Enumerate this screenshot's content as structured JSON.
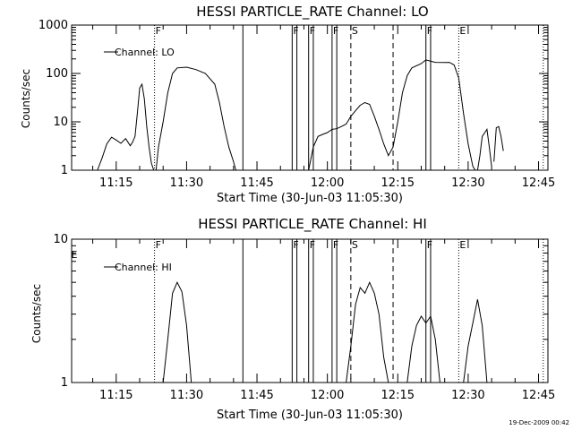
{
  "footer_stamp": "19-Dec-2009 00:42",
  "chart_data": [
    {
      "type": "line",
      "title": "HESSI PARTICLE_RATE Channel: LO",
      "xlabel": "Start Time (30-Jun-03 11:05:30)",
      "ylabel": "Counts/sec",
      "y_scale": "log",
      "ylim": [
        1,
        1000
      ],
      "y_ticks": [
        "1",
        "10",
        "100",
        "1000"
      ],
      "x_range": [
        "11:05:30",
        "12:47"
      ],
      "x_ticks": [
        "11:15",
        "11:30",
        "11:45",
        "12:00",
        "12:15",
        "12:30",
        "12:45"
      ],
      "legend": {
        "label": "Channel: LO",
        "position": "top-left"
      },
      "series": [
        {
          "name": "Channel: LO",
          "segments": [
            [
              [
                "11:11",
                1
              ],
              [
                "11:12",
                1.8
              ],
              [
                "11:13",
                3.5
              ],
              [
                "11:14",
                4.8
              ],
              [
                "11:15",
                4.2
              ],
              [
                "11:16",
                3.6
              ],
              [
                "11:17",
                4.5
              ],
              [
                "11:18",
                3.2
              ],
              [
                "11:18:30",
                3.8
              ],
              [
                "11:19",
                5
              ],
              [
                "11:19:30",
                15
              ],
              [
                "11:20",
                50
              ],
              [
                "11:20:30",
                60
              ],
              [
                "11:21",
                30
              ],
              [
                "11:21:30",
                8
              ],
              [
                "11:22",
                3
              ],
              [
                "11:22:30",
                1.4
              ],
              [
                "11:23",
                1
              ]
            ],
            [
              [
                "11:23:30",
                1
              ],
              [
                "11:24",
                3
              ],
              [
                "11:25",
                10
              ],
              [
                "11:26",
                40
              ],
              [
                "11:27",
                100
              ],
              [
                "11:28",
                130
              ],
              [
                "11:30",
                135
              ],
              [
                "11:32",
                120
              ],
              [
                "11:34",
                100
              ],
              [
                "11:36",
                60
              ],
              [
                "11:37",
                25
              ],
              [
                "11:38",
                8
              ],
              [
                "11:39",
                3
              ],
              [
                "11:40",
                1.5
              ],
              [
                "11:40:30",
                1
              ]
            ],
            [
              [
                "11:56",
                1
              ],
              [
                "11:57",
                3
              ],
              [
                "11:58",
                5
              ],
              [
                "11:59",
                5.5
              ],
              [
                "12:00",
                6
              ],
              [
                "12:01",
                7
              ],
              [
                "12:02",
                7.2
              ],
              [
                "12:03",
                8
              ],
              [
                "12:04",
                9
              ],
              [
                "12:05",
                13
              ],
              [
                "12:06",
                17
              ],
              [
                "12:07",
                22
              ],
              [
                "12:08",
                25
              ],
              [
                "12:09",
                23
              ],
              [
                "12:10",
                13
              ],
              [
                "12:11",
                7
              ],
              [
                "12:12",
                3.5
              ],
              [
                "12:13",
                2
              ],
              [
                "12:14",
                3
              ],
              [
                "12:15",
                10
              ],
              [
                "12:16",
                40
              ],
              [
                "12:17",
                90
              ],
              [
                "12:18",
                130
              ],
              [
                "12:20",
                160
              ],
              [
                "12:21",
                190
              ],
              [
                "12:23",
                170
              ],
              [
                "12:25",
                168
              ],
              [
                "12:26",
                170
              ],
              [
                "12:27",
                150
              ],
              [
                "12:28",
                80
              ],
              [
                "12:29",
                15
              ],
              [
                "12:30",
                3.5
              ],
              [
                "12:31",
                1.2
              ],
              [
                "12:31:30",
                1
              ]
            ],
            [
              [
                "12:32",
                1
              ],
              [
                "12:32:30",
                2
              ],
              [
                "12:33",
                5
              ],
              [
                "12:34",
                7
              ],
              [
                "12:34:30",
                3
              ],
              [
                "12:35",
                1.2
              ]
            ],
            [
              [
                "12:35:30",
                1.5
              ],
              [
                "12:36",
                7.5
              ],
              [
                "12:36:30",
                8
              ],
              [
                "12:37",
                5
              ],
              [
                "12:37:30",
                2.5
              ]
            ]
          ]
        }
      ],
      "markers": [
        {
          "time": "11:23:10",
          "style": "dotted",
          "label": "F"
        },
        {
          "time": "11:42",
          "style": "solid",
          "label": ""
        },
        {
          "time": "11:52:30",
          "style": "solid",
          "label": "F"
        },
        {
          "time": "11:53:30",
          "style": "solid",
          "label": ""
        },
        {
          "time": "11:56",
          "style": "solid",
          "label": "F"
        },
        {
          "time": "11:57",
          "style": "solid",
          "label": ""
        },
        {
          "time": "12:01",
          "style": "solid",
          "label": "F"
        },
        {
          "time": "12:02",
          "style": "solid",
          "label": ""
        },
        {
          "time": "12:05",
          "style": "dashed",
          "label": "S"
        },
        {
          "time": "12:14",
          "style": "dashed",
          "label": ""
        },
        {
          "time": "12:21",
          "style": "solid",
          "label": "F"
        },
        {
          "time": "12:22",
          "style": "solid",
          "label": ""
        },
        {
          "time": "12:28",
          "style": "dotted",
          "label": "E"
        },
        {
          "time": "12:46",
          "style": "dotted",
          "label": ""
        }
      ]
    },
    {
      "type": "line",
      "title": "HESSI PARTICLE_RATE Channel: HI",
      "xlabel": "Start Time (30-Jun-03 11:05:30)",
      "ylabel": "Counts/sec",
      "y_scale": "log",
      "ylim": [
        1,
        10
      ],
      "y_ticks": [
        "1",
        "10"
      ],
      "x_range": [
        "11:05:30",
        "12:47"
      ],
      "x_ticks": [
        "11:15",
        "11:30",
        "11:45",
        "12:00",
        "12:15",
        "12:30",
        "12:45"
      ],
      "legend": {
        "label": "Channel: HI",
        "position": "top-left"
      },
      "series": [
        {
          "name": "Channel: HI",
          "segments": [
            [
              [
                "11:25",
                1
              ],
              [
                "11:26",
                2
              ],
              [
                "11:27",
                4.2
              ],
              [
                "11:28",
                5
              ],
              [
                "11:29",
                4.3
              ],
              [
                "11:30",
                2.5
              ],
              [
                "11:31",
                1
              ]
            ],
            [
              [
                "12:04",
                1
              ],
              [
                "12:05",
                1.8
              ],
              [
                "12:06",
                3.5
              ],
              [
                "12:07",
                4.6
              ],
              [
                "12:08",
                4.2
              ],
              [
                "12:09",
                5
              ],
              [
                "12:10",
                4.2
              ],
              [
                "12:11",
                3
              ],
              [
                "12:12",
                1.5
              ],
              [
                "12:13",
                1
              ]
            ],
            [
              [
                "12:17",
                1
              ],
              [
                "12:18",
                1.8
              ],
              [
                "12:19",
                2.5
              ],
              [
                "12:20",
                2.9
              ],
              [
                "12:21",
                2.6
              ],
              [
                "12:22",
                2.9
              ],
              [
                "12:23",
                2
              ],
              [
                "12:24",
                1
              ]
            ],
            [
              [
                "12:29",
                1
              ],
              [
                "12:30",
                1.8
              ],
              [
                "12:31",
                2.6
              ],
              [
                "12:32",
                3.8
              ],
              [
                "12:33",
                2.5
              ],
              [
                "12:34",
                1
              ]
            ]
          ]
        }
      ],
      "markers": [
        {
          "time": "11:23:10",
          "style": "dotted",
          "label": "F"
        },
        {
          "time": "11:42",
          "style": "solid",
          "label": ""
        },
        {
          "time": "11:52:30",
          "style": "solid",
          "label": "F"
        },
        {
          "time": "11:53:30",
          "style": "solid",
          "label": ""
        },
        {
          "time": "11:56",
          "style": "solid",
          "label": "F"
        },
        {
          "time": "11:57",
          "style": "solid",
          "label": ""
        },
        {
          "time": "12:01",
          "style": "solid",
          "label": "F"
        },
        {
          "time": "12:02",
          "style": "solid",
          "label": ""
        },
        {
          "time": "12:05",
          "style": "dashed",
          "label": "S"
        },
        {
          "time": "12:14",
          "style": "dashed",
          "label": ""
        },
        {
          "time": "12:21",
          "style": "solid",
          "label": "F"
        },
        {
          "time": "12:22",
          "style": "solid",
          "label": ""
        },
        {
          "time": "12:28",
          "style": "dotted",
          "label": "E"
        },
        {
          "time": "12:46",
          "style": "dotted",
          "label": ""
        }
      ],
      "corner_label": "E"
    }
  ]
}
